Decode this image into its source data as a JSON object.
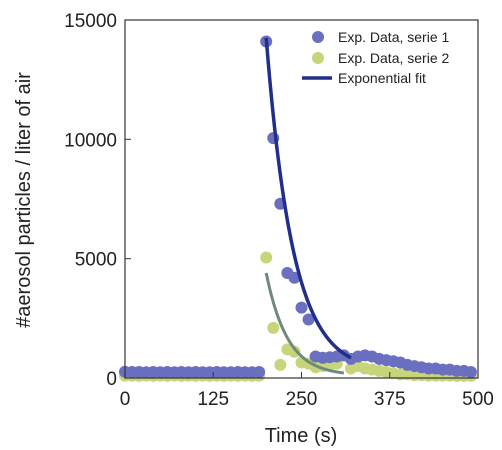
{
  "chart_data": {
    "type": "scatter",
    "xlabel": "Time (s)",
    "ylabel": "#aerosol particles / liter of air",
    "xlim": [
      0,
      500
    ],
    "ylim": [
      0,
      15000
    ],
    "x_ticks": [
      "0",
      "125",
      "250",
      "375",
      "500"
    ],
    "y_ticks": [
      "0",
      "5000",
      "10000",
      "15000"
    ],
    "grid": false,
    "legend_position": "top-right",
    "colors": {
      "series1": "#6b6fc0",
      "series2": "#c8d47a",
      "fit": "#1f2f8a",
      "fit2": "#6f8a7a"
    },
    "series": [
      {
        "name": "Exp. Data, serie 1",
        "x": [
          0,
          10,
          20,
          30,
          40,
          50,
          60,
          70,
          80,
          90,
          100,
          110,
          120,
          130,
          140,
          150,
          160,
          170,
          180,
          190,
          200,
          210,
          220,
          230,
          240,
          250,
          260,
          270,
          280,
          290,
          300,
          310,
          320,
          330,
          340,
          350,
          360,
          370,
          380,
          390,
          400,
          410,
          420,
          430,
          440,
          450,
          460,
          470,
          480,
          490
        ],
        "y": [
          260,
          250,
          250,
          240,
          250,
          240,
          250,
          240,
          250,
          240,
          250,
          240,
          240,
          250,
          240,
          240,
          250,
          240,
          240,
          250,
          14100,
          10050,
          7300,
          4400,
          4200,
          2950,
          2450,
          900,
          850,
          870,
          900,
          950,
          800,
          900,
          950,
          900,
          800,
          750,
          700,
          650,
          550,
          500,
          450,
          400,
          400,
          350,
          350,
          300,
          300,
          250
        ]
      },
      {
        "name": "Exp. Data, serie 2",
        "x": [
          0,
          10,
          20,
          30,
          40,
          50,
          60,
          70,
          80,
          90,
          100,
          110,
          120,
          130,
          140,
          150,
          160,
          170,
          180,
          190,
          200,
          210,
          220,
          230,
          240,
          250,
          260,
          270,
          280,
          290,
          300,
          310,
          320,
          330,
          340,
          350,
          360,
          370,
          380,
          390,
          400,
          410,
          420,
          430,
          440,
          450,
          460,
          470,
          480,
          490
        ],
        "y": [
          100,
          100,
          90,
          100,
          90,
          100,
          90,
          100,
          90,
          100,
          90,
          100,
          90,
          100,
          90,
          100,
          90,
          100,
          90,
          100,
          5050,
          2100,
          550,
          1200,
          1100,
          650,
          600,
          450,
          500,
          550,
          600,
          950,
          400,
          500,
          400,
          350,
          300,
          250,
          200,
          150,
          150,
          120,
          120,
          100,
          100,
          100,
          100,
          90,
          90,
          90
        ]
      }
    ],
    "fits": [
      {
        "name": "Exponential fit",
        "x0": 200,
        "x1": 320,
        "amplitude": 14000,
        "tau": 38,
        "baseline": 250
      },
      {
        "x0": 200,
        "x1": 310,
        "amplitude": 4300,
        "tau": 30,
        "baseline": 100
      }
    ]
  }
}
